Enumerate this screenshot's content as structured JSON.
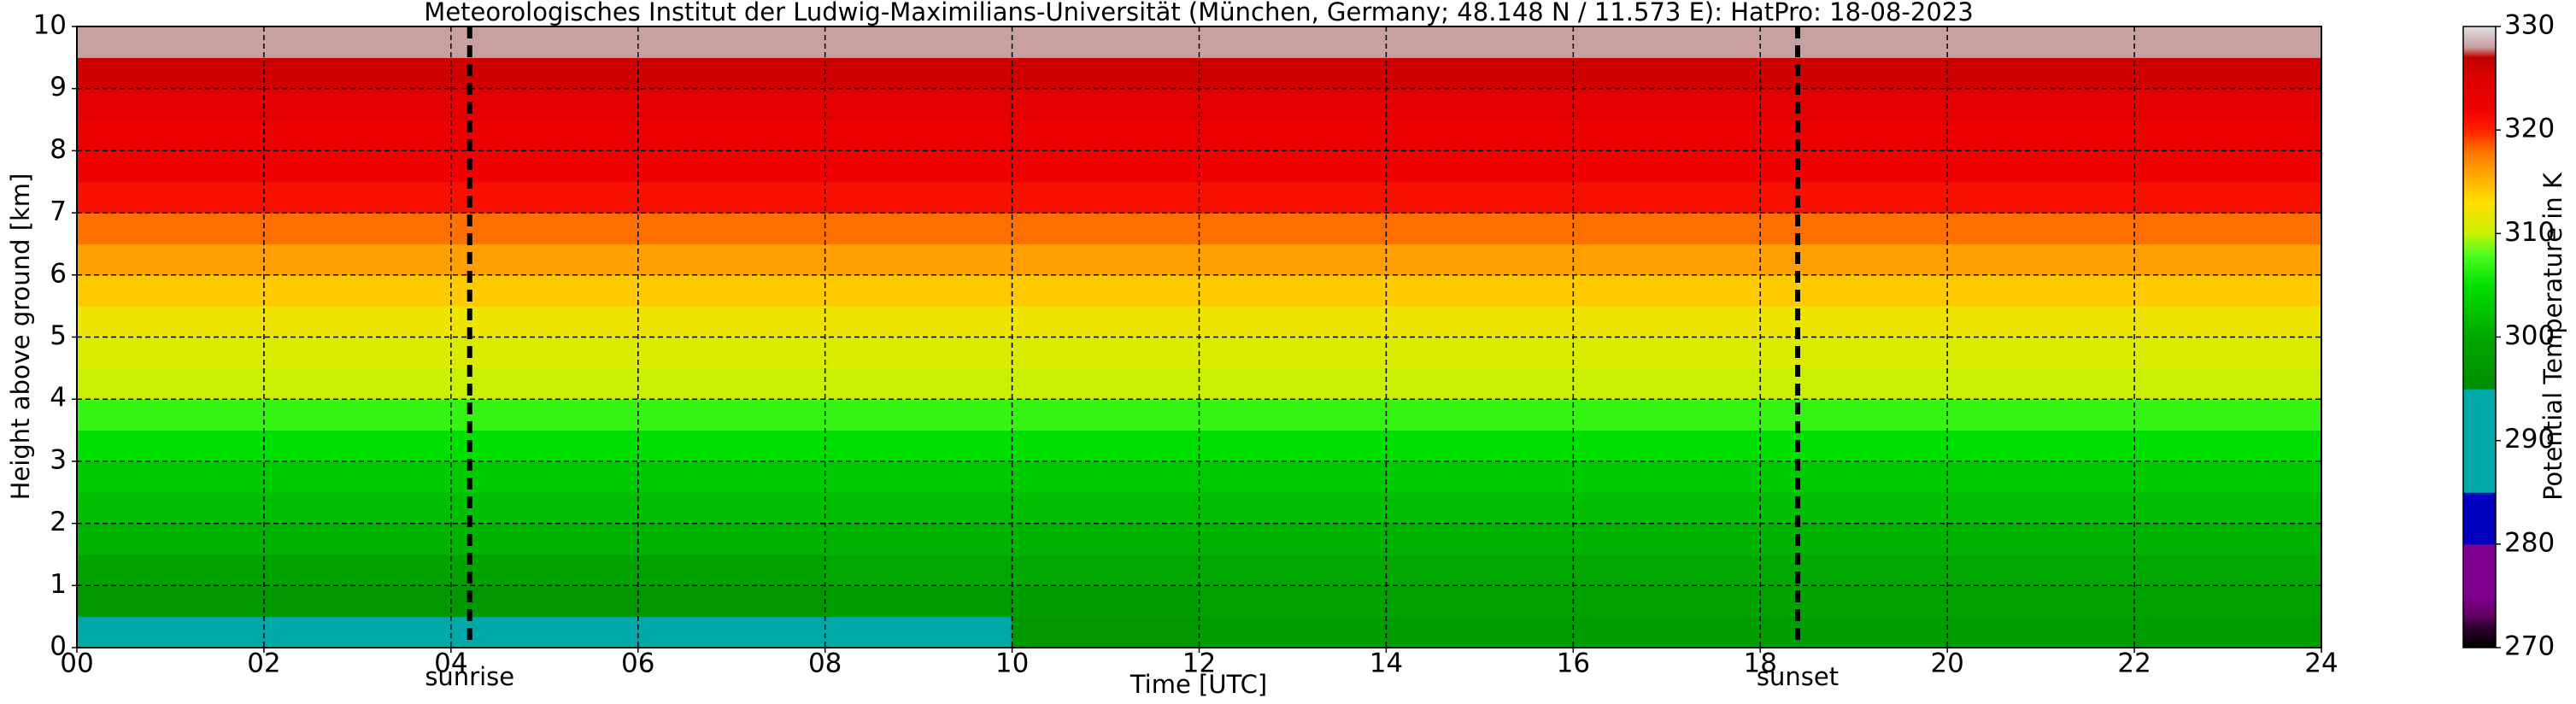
{
  "chart_data": {
    "type": "heatmap",
    "title": "Meteorologisches Institut der Ludwig-Maximilians-Universität (München, Germany; 48.148 N / 11.573 E):    HatPro: 18-08-2023",
    "x_label": "Time [UTC]",
    "y_label": "Height above ground [km]",
    "xbins": [
      0,
      2,
      4,
      6,
      8,
      10,
      12,
      14,
      16,
      18,
      20,
      22,
      24
    ],
    "ybins": [
      0,
      0.5,
      1,
      1.5,
      2,
      2.5,
      3,
      3.5,
      4,
      4.5,
      5,
      5.5,
      6,
      6.5,
      7,
      7.5,
      8,
      8.5,
      9,
      9.5,
      10
    ],
    "z": [
      [
        293,
        294,
        293,
        293,
        294,
        297,
        298,
        298,
        298,
        298,
        298,
        298
      ],
      [
        297,
        297,
        297,
        297,
        298,
        298,
        299,
        299,
        299,
        299,
        299,
        299
      ],
      [
        299,
        299,
        299,
        299,
        300,
        300,
        300,
        300,
        300,
        300,
        300,
        300
      ],
      [
        301,
        301,
        301,
        301,
        301,
        301,
        301,
        301,
        301,
        301,
        301,
        301
      ],
      [
        302,
        302,
        302,
        302,
        302,
        302,
        302,
        302,
        302,
        302,
        302,
        302
      ],
      [
        303,
        303,
        303,
        303,
        303,
        303,
        303,
        303,
        303,
        303,
        303,
        303
      ],
      [
        305,
        305,
        305,
        305,
        305,
        305,
        305,
        305,
        305,
        305,
        305,
        305
      ],
      [
        307,
        307,
        307,
        307,
        307,
        307,
        307,
        307,
        307,
        307,
        307,
        307
      ],
      [
        310,
        310,
        310,
        310,
        310,
        310,
        310,
        310,
        310,
        310,
        310,
        310
      ],
      [
        311,
        311,
        311,
        311,
        311,
        311,
        311,
        311,
        311,
        311,
        311,
        311
      ],
      [
        312,
        312,
        312,
        312,
        312,
        312,
        312,
        312,
        312,
        312,
        312,
        312
      ],
      [
        314,
        314,
        314,
        314,
        314,
        314,
        314,
        314,
        314,
        314,
        314,
        314
      ],
      [
        316,
        316,
        316,
        316,
        316,
        316,
        316,
        316,
        316,
        316,
        316,
        316
      ],
      [
        318,
        318,
        318,
        318,
        318,
        318,
        318,
        318,
        318,
        318,
        318,
        318
      ],
      [
        321,
        321,
        321,
        321,
        321,
        321,
        321,
        321,
        321,
        321,
        321,
        321
      ],
      [
        322,
        322,
        322,
        322,
        322,
        322,
        322,
        322,
        322,
        322,
        322,
        322
      ],
      [
        323,
        323,
        323,
        323,
        323,
        323,
        323,
        323,
        323,
        323,
        323,
        323
      ],
      [
        324,
        324,
        324,
        324,
        324,
        324,
        324,
        324,
        324,
        324,
        324,
        324
      ],
      [
        326,
        326,
        326,
        326,
        326,
        326,
        326,
        326,
        326,
        326,
        326,
        326
      ],
      [
        328,
        328,
        328,
        328,
        328,
        328,
        328,
        328,
        328,
        328,
        328,
        328
      ]
    ],
    "xlim": [
      0,
      24
    ],
    "xticks": [
      {
        "value": 0,
        "label": "00"
      },
      {
        "value": 2,
        "label": "02"
      },
      {
        "value": 4,
        "label": "04"
      },
      {
        "value": 6,
        "label": "06"
      },
      {
        "value": 8,
        "label": "08"
      },
      10,
      12,
      14,
      16,
      18,
      20,
      22,
      24
    ],
    "ylim": [
      0,
      10
    ],
    "yticks": [
      0,
      1,
      2,
      3,
      4,
      5,
      6,
      7,
      8,
      9,
      10
    ],
    "grid": true,
    "annotations": [
      {
        "x": 4.2,
        "label": "sunrise"
      },
      {
        "x": 18.4,
        "label": "sunset"
      }
    ],
    "colorbar": {
      "label": "Potential Temperature in K",
      "lim": [
        270,
        330
      ],
      "ticks": [
        270,
        280,
        290,
        300,
        310,
        320,
        330
      ],
      "stops": [
        {
          "value": 270,
          "color": "#000000"
        },
        {
          "value": 272,
          "color": "#300030"
        },
        {
          "value": 273,
          "color": "#600060"
        },
        {
          "value": 275,
          "color": "#800090"
        },
        {
          "value": 279.9,
          "color": "#800090"
        },
        {
          "value": 280,
          "color": "#0000c0"
        },
        {
          "value": 284.9,
          "color": "#0000c0"
        },
        {
          "value": 285,
          "color": "#00a8a8"
        },
        {
          "value": 294.9,
          "color": "#00a8a8"
        },
        {
          "value": 295,
          "color": "#008c00"
        },
        {
          "value": 300,
          "color": "#00a800"
        },
        {
          "value": 305,
          "color": "#00e000"
        },
        {
          "value": 308,
          "color": "#50ff20"
        },
        {
          "value": 310,
          "color": "#c8f000"
        },
        {
          "value": 313,
          "color": "#ffe000"
        },
        {
          "value": 316,
          "color": "#ffa000"
        },
        {
          "value": 318,
          "color": "#ff7000"
        },
        {
          "value": 320,
          "color": "#ff2000"
        },
        {
          "value": 322,
          "color": "#f00000"
        },
        {
          "value": 325,
          "color": "#dd0000"
        },
        {
          "value": 327,
          "color": "#c00000"
        },
        {
          "value": 328,
          "color": "#c8a0a0"
        },
        {
          "value": 330,
          "color": "#e0e0e0"
        }
      ]
    }
  }
}
